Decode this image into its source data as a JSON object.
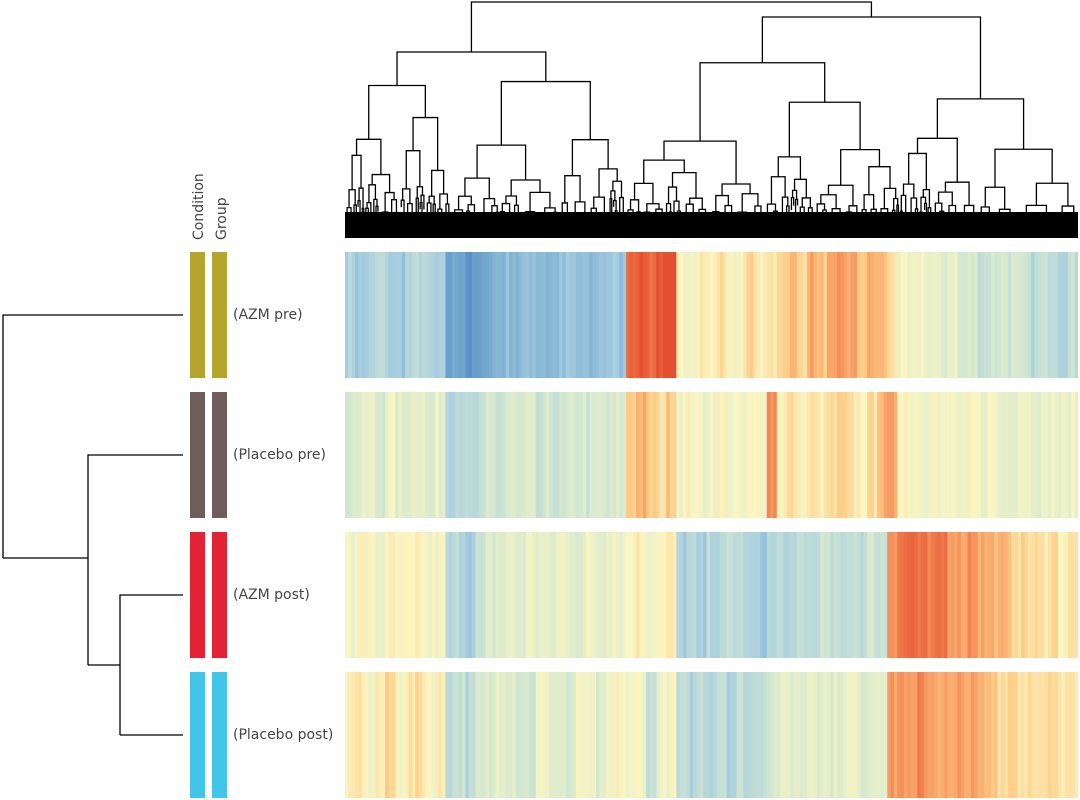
{
  "chart_data": {
    "type": "heatmap",
    "title": "",
    "annotation_headers": [
      "Condition",
      "Group"
    ],
    "colormap": [
      "#4a7ec0",
      "#74a9cf",
      "#a6cde0",
      "#d3e8d0",
      "#fbf6c2",
      "#fdcb85",
      "#f5925c",
      "#e4502f"
    ],
    "value_range": [
      -2,
      2
    ],
    "rows": [
      {
        "label": "(AZM pre)",
        "condition_color": "#b5a42e",
        "group_color": "#b5a42e",
        "values": [
          -0.7,
          -0.9,
          -0.8,
          -0.6,
          -0.8,
          -0.9,
          -0.7,
          -0.6,
          -0.8,
          -0.9,
          -1.5,
          -1.4,
          -1.7,
          -1.6,
          -1.3,
          -1.2,
          -1.1,
          -1.2,
          -1.0,
          -1.1,
          -1.2,
          -1.1,
          -1.0,
          -1.1,
          -1.2,
          -1.0,
          -0.9,
          -1.0,
          1.9,
          2.0,
          1.8,
          2.0,
          1.9,
          0.2,
          0.3,
          0.5,
          0.3,
          0.6,
          0.2,
          0.4,
          0.7,
          0.3,
          0.5,
          0.8,
          1.0,
          0.7,
          1.2,
          0.9,
          1.1,
          1.3,
          1.2,
          0.9,
          1.1,
          1.0,
          0.6,
          0.1,
          0.0,
          0.2,
          0.0,
          -0.1,
          0.1,
          -0.3,
          -0.2,
          -0.4,
          -0.3,
          -0.2,
          -0.3,
          -0.4,
          -0.6,
          -0.5,
          -0.4,
          -0.6,
          -0.5
        ]
      },
      {
        "label": "(Placebo pre)",
        "condition_color": "#6e5d5b",
        "group_color": "#6e5d5b",
        "values": [
          -0.2,
          -0.1,
          0.0,
          -0.2,
          0.1,
          -0.1,
          0.0,
          0.1,
          -0.2,
          0.0,
          -0.6,
          -0.5,
          -0.7,
          -0.6,
          -0.3,
          -0.4,
          -0.2,
          -0.3,
          -0.2,
          -0.5,
          -0.3,
          -0.4,
          -0.3,
          -0.2,
          -0.3,
          -0.2,
          -0.3,
          -0.2,
          0.9,
          1.1,
          0.8,
          0.6,
          0.9,
          0.2,
          0.3,
          0.1,
          0.2,
          0.3,
          0.2,
          0.1,
          0.2,
          0.3,
          1.5,
          0.4,
          0.6,
          0.3,
          0.5,
          0.4,
          0.6,
          0.7,
          0.5,
          0.4,
          0.6,
          1.1,
          1.2,
          0.4,
          0.3,
          0.2,
          0.3,
          0.1,
          0.2,
          0.0,
          0.2,
          0.1,
          0.2,
          0.0,
          0.1,
          0.2,
          0.1,
          0.0,
          0.1,
          0.0,
          0.1
        ]
      },
      {
        "label": "(AZM post)",
        "condition_color": "#e42236",
        "group_color": "#e42236",
        "values": [
          0.2,
          0.3,
          0.2,
          0.1,
          0.3,
          0.2,
          0.2,
          0.3,
          0.1,
          0.2,
          -0.7,
          -0.6,
          -0.8,
          -0.5,
          -0.2,
          -0.1,
          0.0,
          -0.1,
          0.1,
          0.0,
          -0.1,
          0.1,
          0.0,
          -0.1,
          0.1,
          0.0,
          0.2,
          0.1,
          0.3,
          0.4,
          0.2,
          0.3,
          0.4,
          -0.8,
          -0.7,
          -0.9,
          -0.6,
          -0.7,
          -0.5,
          -0.6,
          -0.8,
          -0.9,
          -0.7,
          -0.6,
          -0.8,
          -0.5,
          -0.6,
          -0.4,
          -0.5,
          -0.6,
          -0.4,
          -0.5,
          -0.3,
          -0.4,
          1.5,
          1.7,
          1.8,
          1.6,
          1.5,
          1.7,
          1.4,
          1.3,
          1.5,
          1.2,
          1.1,
          1.0,
          0.8,
          0.7,
          0.6,
          0.5,
          0.7,
          0.4,
          0.5
        ]
      },
      {
        "label": "(Placebo post)",
        "condition_color": "#43c5ea",
        "group_color": "#43c5ea",
        "values": [
          0.3,
          0.5,
          0.2,
          0.4,
          0.7,
          0.3,
          0.5,
          0.6,
          0.3,
          0.4,
          -0.5,
          -0.4,
          -0.6,
          -0.3,
          -0.2,
          0.1,
          0.0,
          -0.2,
          -0.3,
          0.1,
          0.0,
          -0.1,
          -0.3,
          0.2,
          0.0,
          -0.2,
          0.1,
          0.3,
          0.1,
          0.2,
          -0.5,
          0.1,
          0.2,
          -0.6,
          -0.7,
          -0.5,
          -0.6,
          -0.4,
          -0.7,
          -0.5,
          -0.6,
          -0.4,
          -0.2,
          -0.1,
          0.0,
          -0.1,
          0.1,
          0.0,
          -0.1,
          0.0,
          0.1,
          -0.1,
          0.0,
          0.1,
          1.3,
          1.4,
          1.2,
          1.5,
          1.3,
          1.2,
          1.1,
          1.3,
          1.2,
          1.0,
          0.9,
          0.7,
          0.8,
          0.6,
          0.7,
          0.5,
          0.6,
          0.4,
          0.6
        ]
      }
    ]
  }
}
